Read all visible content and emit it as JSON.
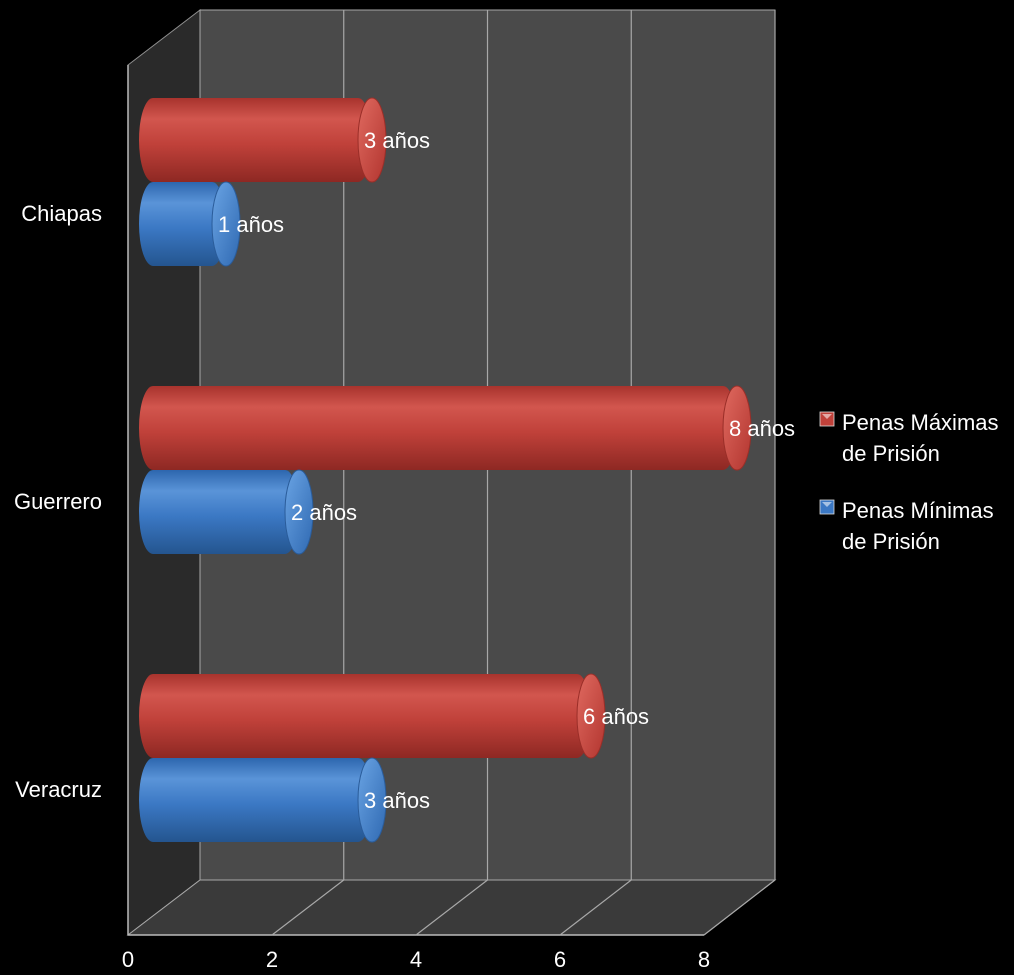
{
  "chart_data": {
    "type": "bar",
    "orientation": "horizontal",
    "style": "3d-cylinder",
    "categories": [
      "Chiapas",
      "Guerrero",
      "Veracruz"
    ],
    "series": [
      {
        "name": "Penas Máximas de Prisión",
        "name_lines": [
          "Penas Máximas",
          "de Prisión"
        ],
        "values": [
          3,
          8,
          6
        ],
        "labels": [
          "3 años",
          "8 años",
          "6 años"
        ],
        "color": "#c0413a"
      },
      {
        "name": "Penas Mínimas de Prisión",
        "name_lines": [
          "Penas Mínimas",
          "de Prisión"
        ],
        "values": [
          1,
          2,
          3
        ],
        "labels": [
          "1 años",
          "2 años",
          "3 años"
        ],
        "color": "#3b78c4"
      }
    ],
    "x_ticks": [
      "0",
      "2",
      "4",
      "6",
      "8"
    ],
    "xlim": [
      0,
      8
    ],
    "grid": true,
    "legend": "right",
    "colors": {
      "background": "#000000",
      "plot_back": "#4a4a4a",
      "plot_side": "#2a2a2a",
      "plot_floor": "#3a3a3a",
      "grid": "#a8a8a8",
      "text": "#ffffff"
    }
  }
}
